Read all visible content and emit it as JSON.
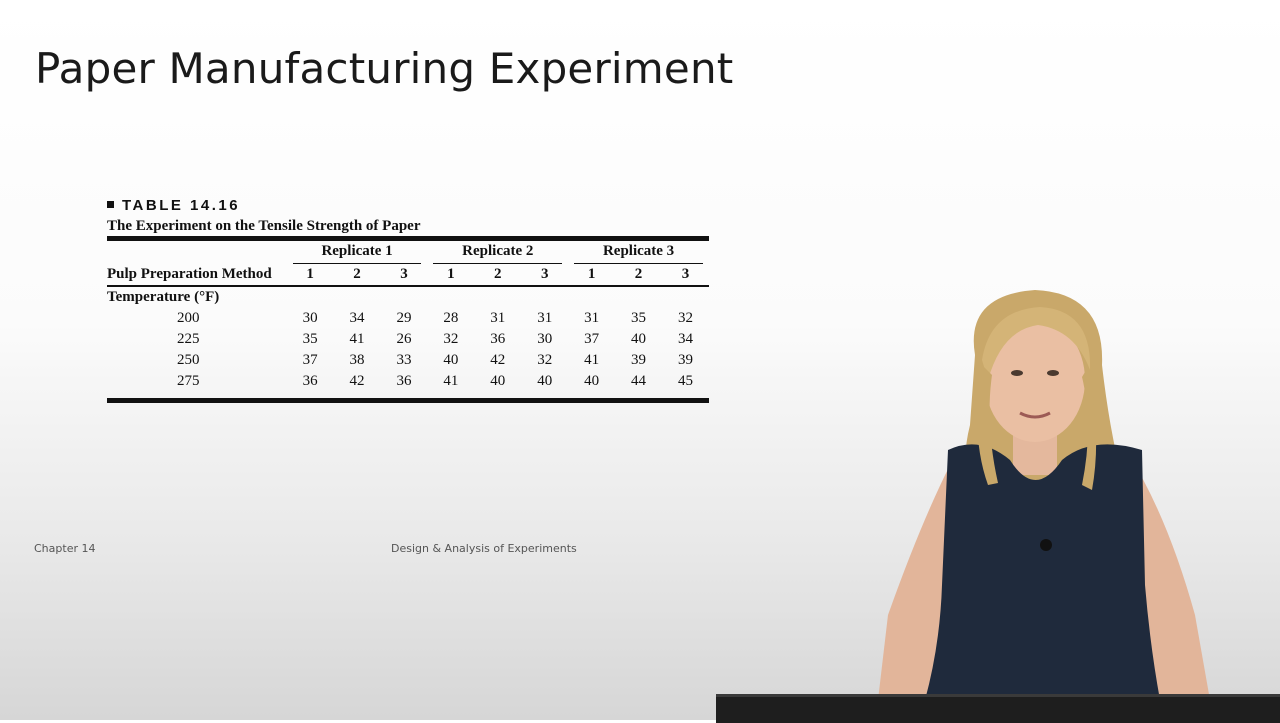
{
  "slide": {
    "title": "Paper Manufacturing Experiment",
    "footer_left": "Chapter 14",
    "footer_center": "Design & Analysis of Experiments"
  },
  "table": {
    "label": "TABLE 14.16",
    "caption": "The Experiment on the Tensile Strength of Paper",
    "replicates": [
      "Replicate 1",
      "Replicate 2",
      "Replicate 3"
    ],
    "method_header": "Pulp Preparation Method",
    "method_numbers": [
      "1",
      "2",
      "3",
      "1",
      "2",
      "3",
      "1",
      "2",
      "3"
    ],
    "temperature_header": "Temperature (°F)",
    "rows": [
      {
        "temp": "200",
        "values": [
          "30",
          "34",
          "29",
          "28",
          "31",
          "31",
          "31",
          "35",
          "32"
        ]
      },
      {
        "temp": "225",
        "values": [
          "35",
          "41",
          "26",
          "32",
          "36",
          "30",
          "37",
          "40",
          "34"
        ]
      },
      {
        "temp": "250",
        "values": [
          "37",
          "38",
          "33",
          "40",
          "42",
          "32",
          "41",
          "39",
          "39"
        ]
      },
      {
        "temp": "275",
        "values": [
          "36",
          "42",
          "36",
          "41",
          "40",
          "40",
          "40",
          "44",
          "45"
        ]
      }
    ]
  },
  "colors": {
    "presenter_dress": "#1f2a3c",
    "presenter_hair": "#c9a86a",
    "podium": "#1e1e1e"
  }
}
